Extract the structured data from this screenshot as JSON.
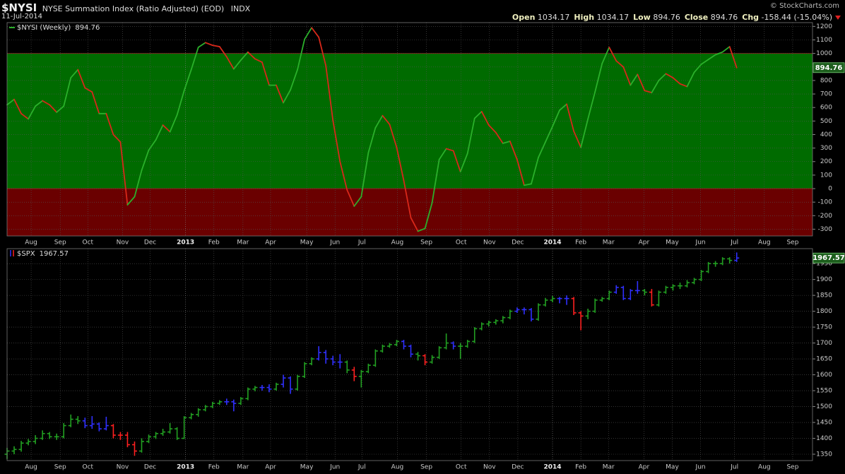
{
  "header": {
    "symbol": "$NYSI",
    "name": "NYSE Summation Index (Ratio Adjusted) (EOD)",
    "exchange": "INDX",
    "date": "11-Jul-2014",
    "source": "© StockCharts.com",
    "quote": [
      {
        "label": "Open",
        "value": "1034.17"
      },
      {
        "label": "High",
        "value": "1034.17"
      },
      {
        "label": "Low",
        "value": "894.76"
      },
      {
        "label": "Close",
        "value": "894.76"
      },
      {
        "label": "Chg",
        "value": "-158.44 (-15.04%)"
      }
    ]
  },
  "chart_data": [
    {
      "type": "line",
      "name": "$NYSI (Weekly)",
      "up_color": "#2bb02b",
      "down_color": "#d8281a",
      "values": [
        620,
        660,
        555,
        515,
        610,
        650,
        620,
        565,
        610,
        820,
        880,
        745,
        715,
        555,
        555,
        400,
        345,
        -120,
        -60,
        135,
        285,
        360,
        470,
        420,
        545,
        725,
        880,
        1045,
        1080,
        1060,
        1050,
        975,
        885,
        950,
        1010,
        960,
        935,
        765,
        765,
        635,
        730,
        880,
        1105,
        1190,
        1120,
        910,
        505,
        200,
        -10,
        -130,
        -60,
        265,
        450,
        540,
        475,
        305,
        60,
        -215,
        -315,
        -295,
        -105,
        215,
        295,
        280,
        125,
        260,
        520,
        570,
        470,
        415,
        335,
        350,
        215,
        25,
        35,
        230,
        345,
        460,
        580,
        625,
        425,
        305,
        515,
        715,
        925,
        1045,
        945,
        900,
        765,
        845,
        725,
        710,
        800,
        850,
        820,
        775,
        755,
        860,
        920,
        955,
        990,
        1010,
        1050,
        894.76
      ],
      "zones": [
        {
          "from": 0,
          "to": 1000,
          "color": "#006b00"
        },
        {
          "to": 0,
          "color": "#6a0000"
        }
      ],
      "ylim": [
        -350,
        1228
      ],
      "yticks": [
        -300,
        -200,
        -100,
        0,
        100,
        200,
        300,
        400,
        500,
        600,
        700,
        800,
        900,
        1000,
        1100,
        1200
      ],
      "xlim": [
        0,
        113.7
      ],
      "xticks": [
        {
          "value": 3.4,
          "label": "Aug"
        },
        {
          "value": 7.5,
          "label": "Sep"
        },
        {
          "value": 11.4,
          "label": "Oct"
        },
        {
          "value": 16.3,
          "label": "Nov"
        },
        {
          "value": 20.2,
          "label": "Dec"
        },
        {
          "value": 25.2,
          "label": "2013"
        },
        {
          "value": 29.2,
          "label": "Feb"
        },
        {
          "value": 33.3,
          "label": "Mar"
        },
        {
          "value": 37.2,
          "label": "Apr"
        },
        {
          "value": 42.3,
          "label": "May"
        },
        {
          "value": 46.3,
          "label": "Jun"
        },
        {
          "value": 50.1,
          "label": "Jul"
        },
        {
          "value": 55.1,
          "label": "Aug"
        },
        {
          "value": 59.2,
          "label": "Sep"
        },
        {
          "value": 64.1,
          "label": "Oct"
        },
        {
          "value": 68.1,
          "label": "Nov"
        },
        {
          "value": 72.1,
          "label": "Dec"
        },
        {
          "value": 77.0,
          "label": "2014"
        },
        {
          "value": 81.0,
          "label": "Feb"
        },
        {
          "value": 84.9,
          "label": "Mar"
        },
        {
          "value": 89.9,
          "label": "Apr"
        },
        {
          "value": 93.9,
          "label": "May"
        },
        {
          "value": 97.9,
          "label": "Jun"
        },
        {
          "value": 102.7,
          "label": "Jul"
        },
        {
          "value": 106.9,
          "label": "Aug"
        },
        {
          "value": 110.9,
          "label": "Sep"
        }
      ],
      "grid": true
    },
    {
      "type": "ohlc",
      "name": "$SPX",
      "open": [
        1350,
        1360,
        1365,
        1385,
        1390,
        1400,
        1415,
        1405,
        1405,
        1440,
        1460,
        1455,
        1440,
        1445,
        1430,
        1440,
        1410,
        1410,
        1380,
        1360,
        1390,
        1405,
        1415,
        1420,
        1430,
        1400,
        1465,
        1475,
        1490,
        1500,
        1510,
        1515,
        1515,
        1510,
        1525,
        1555,
        1560,
        1560,
        1555,
        1570,
        1590,
        1555,
        1595,
        1635,
        1650,
        1670,
        1650,
        1640,
        1640,
        1615,
        1595,
        1610,
        1630,
        1675,
        1690,
        1695,
        1705,
        1690,
        1665,
        1660,
        1640,
        1655,
        1685,
        1700,
        1690,
        1690,
        1705,
        1745,
        1760,
        1765,
        1770,
        1780,
        1800,
        1805,
        1805,
        1775,
        1820,
        1835,
        1840,
        1840,
        1840,
        1795,
        1785,
        1800,
        1835,
        1840,
        1860,
        1875,
        1840,
        1865,
        1865,
        1860,
        1820,
        1860,
        1875,
        1880,
        1880,
        1890,
        1900,
        1925,
        1950,
        1950,
        1965,
        1960
      ],
      "high": [
        1370,
        1375,
        1392,
        1398,
        1410,
        1425,
        1420,
        1415,
        1448,
        1475,
        1470,
        1465,
        1470,
        1450,
        1468,
        1445,
        1420,
        1420,
        1390,
        1400,
        1412,
        1420,
        1430,
        1448,
        1435,
        1470,
        1480,
        1495,
        1505,
        1515,
        1520,
        1525,
        1522,
        1530,
        1560,
        1565,
        1568,
        1570,
        1575,
        1600,
        1595,
        1600,
        1640,
        1655,
        1690,
        1678,
        1660,
        1665,
        1645,
        1625,
        1615,
        1635,
        1680,
        1695,
        1700,
        1710,
        1710,
        1695,
        1672,
        1665,
        1662,
        1690,
        1730,
        1705,
        1700,
        1710,
        1750,
        1765,
        1770,
        1775,
        1785,
        1805,
        1812,
        1812,
        1810,
        1825,
        1842,
        1848,
        1845,
        1850,
        1845,
        1800,
        1808,
        1840,
        1845,
        1865,
        1882,
        1880,
        1870,
        1895,
        1870,
        1870,
        1865,
        1880,
        1885,
        1890,
        1898,
        1905,
        1930,
        1955,
        1958,
        1970,
        1970,
        1985
      ],
      "low": [
        1335,
        1350,
        1358,
        1378,
        1382,
        1395,
        1398,
        1395,
        1400,
        1435,
        1445,
        1432,
        1430,
        1422,
        1425,
        1400,
        1395,
        1372,
        1345,
        1355,
        1385,
        1398,
        1408,
        1415,
        1395,
        1398,
        1460,
        1468,
        1485,
        1495,
        1505,
        1505,
        1485,
        1505,
        1520,
        1548,
        1550,
        1545,
        1550,
        1560,
        1540,
        1550,
        1590,
        1630,
        1645,
        1635,
        1630,
        1620,
        1605,
        1580,
        1560,
        1605,
        1625,
        1670,
        1685,
        1690,
        1680,
        1655,
        1645,
        1630,
        1635,
        1650,
        1680,
        1680,
        1650,
        1685,
        1700,
        1740,
        1752,
        1758,
        1762,
        1775,
        1795,
        1790,
        1768,
        1770,
        1815,
        1828,
        1825,
        1820,
        1788,
        1740,
        1775,
        1795,
        1830,
        1835,
        1855,
        1835,
        1835,
        1855,
        1850,
        1815,
        1815,
        1855,
        1865,
        1870,
        1875,
        1885,
        1895,
        1920,
        1940,
        1945,
        1950,
        1955
      ],
      "close": [
        1360,
        1365,
        1385,
        1390,
        1400,
        1415,
        1405,
        1405,
        1440,
        1460,
        1455,
        1440,
        1445,
        1430,
        1440,
        1410,
        1410,
        1380,
        1360,
        1390,
        1405,
        1415,
        1420,
        1430,
        1400,
        1465,
        1475,
        1490,
        1500,
        1510,
        1515,
        1515,
        1510,
        1525,
        1555,
        1560,
        1560,
        1555,
        1570,
        1590,
        1555,
        1595,
        1635,
        1650,
        1670,
        1650,
        1640,
        1640,
        1615,
        1595,
        1610,
        1630,
        1675,
        1690,
        1695,
        1705,
        1690,
        1665,
        1660,
        1640,
        1655,
        1685,
        1700,
        1690,
        1690,
        1705,
        1745,
        1760,
        1765,
        1770,
        1780,
        1800,
        1805,
        1805,
        1775,
        1820,
        1835,
        1840,
        1840,
        1840,
        1795,
        1785,
        1800,
        1835,
        1840,
        1860,
        1875,
        1840,
        1865,
        1865,
        1860,
        1820,
        1860,
        1875,
        1880,
        1880,
        1890,
        1900,
        1925,
        1950,
        1950,
        1965,
        1960,
        1967.57
      ],
      "colors": [
        "#22a022",
        "#22a022",
        "#22a022",
        "#22a022",
        "#22a022",
        "#22a022",
        "#22a022",
        "#22a022",
        "#22a022",
        "#22a022",
        "#22a022",
        "#3030ff",
        "#3030ff",
        "#3030ff",
        "#3030ff",
        "#ff2020",
        "#ff2020",
        "#ff2020",
        "#ff2020",
        "#22a022",
        "#22a022",
        "#22a022",
        "#22a022",
        "#22a022",
        "#22a022",
        "#22a022",
        "#22a022",
        "#22a022",
        "#22a022",
        "#22a022",
        "#22a022",
        "#3030ff",
        "#3030ff",
        "#22a022",
        "#22a022",
        "#22a022",
        "#3030ff",
        "#3030ff",
        "#22a022",
        "#3030ff",
        "#3030ff",
        "#22a022",
        "#22a022",
        "#22a022",
        "#3030ff",
        "#3030ff",
        "#3030ff",
        "#3030ff",
        "#22a022",
        "#ff2020",
        "#22a022",
        "#22a022",
        "#22a022",
        "#22a022",
        "#22a022",
        "#22a022",
        "#3030ff",
        "#3030ff",
        "#22a022",
        "#ff2020",
        "#22a022",
        "#22a022",
        "#22a022",
        "#3030ff",
        "#22a022",
        "#22a022",
        "#22a022",
        "#22a022",
        "#22a022",
        "#22a022",
        "#22a022",
        "#22a022",
        "#3030ff",
        "#3030ff",
        "#3030ff",
        "#22a022",
        "#22a022",
        "#22a022",
        "#3030ff",
        "#3030ff",
        "#ff2020",
        "#ff2020",
        "#22a022",
        "#22a022",
        "#22a022",
        "#22a022",
        "#3030ff",
        "#3030ff",
        "#3030ff",
        "#3030ff",
        "#22a022",
        "#ff2020",
        "#22a022",
        "#22a022",
        "#22a022",
        "#22a022",
        "#22a022",
        "#22a022",
        "#22a022",
        "#22a022",
        "#22a022",
        "#22a022",
        "#22a022",
        "#3030ff"
      ],
      "ylim": [
        1330,
        1997
      ],
      "yticks": [
        1350,
        1400,
        1450,
        1500,
        1550,
        1600,
        1650,
        1700,
        1750,
        1800,
        1850,
        1900,
        1950
      ],
      "xlim": [
        0,
        113.7
      ],
      "xticks": [
        {
          "value": 3.4,
          "label": "Aug"
        },
        {
          "value": 7.5,
          "label": "Sep"
        },
        {
          "value": 11.4,
          "label": "Oct"
        },
        {
          "value": 16.3,
          "label": "Nov"
        },
        {
          "value": 20.2,
          "label": "Dec"
        },
        {
          "value": 25.2,
          "label": "2013"
        },
        {
          "value": 29.2,
          "label": "Feb"
        },
        {
          "value": 33.3,
          "label": "Mar"
        },
        {
          "value": 37.2,
          "label": "Apr"
        },
        {
          "value": 42.3,
          "label": "May"
        },
        {
          "value": 46.3,
          "label": "Jun"
        },
        {
          "value": 50.1,
          "label": "Jul"
        },
        {
          "value": 55.1,
          "label": "Aug"
        },
        {
          "value": 59.2,
          "label": "Sep"
        },
        {
          "value": 64.1,
          "label": "Oct"
        },
        {
          "value": 68.1,
          "label": "Nov"
        },
        {
          "value": 72.1,
          "label": "Dec"
        },
        {
          "value": 77.0,
          "label": "2014"
        },
        {
          "value": 81.0,
          "label": "Feb"
        },
        {
          "value": 84.9,
          "label": "Mar"
        },
        {
          "value": 89.9,
          "label": "Apr"
        },
        {
          "value": 93.9,
          "label": "May"
        },
        {
          "value": 97.9,
          "label": "Jun"
        },
        {
          "value": 102.7,
          "label": "Jul"
        },
        {
          "value": 106.9,
          "label": "Aug"
        },
        {
          "value": 110.9,
          "label": "Sep"
        }
      ],
      "grid": true
    }
  ]
}
